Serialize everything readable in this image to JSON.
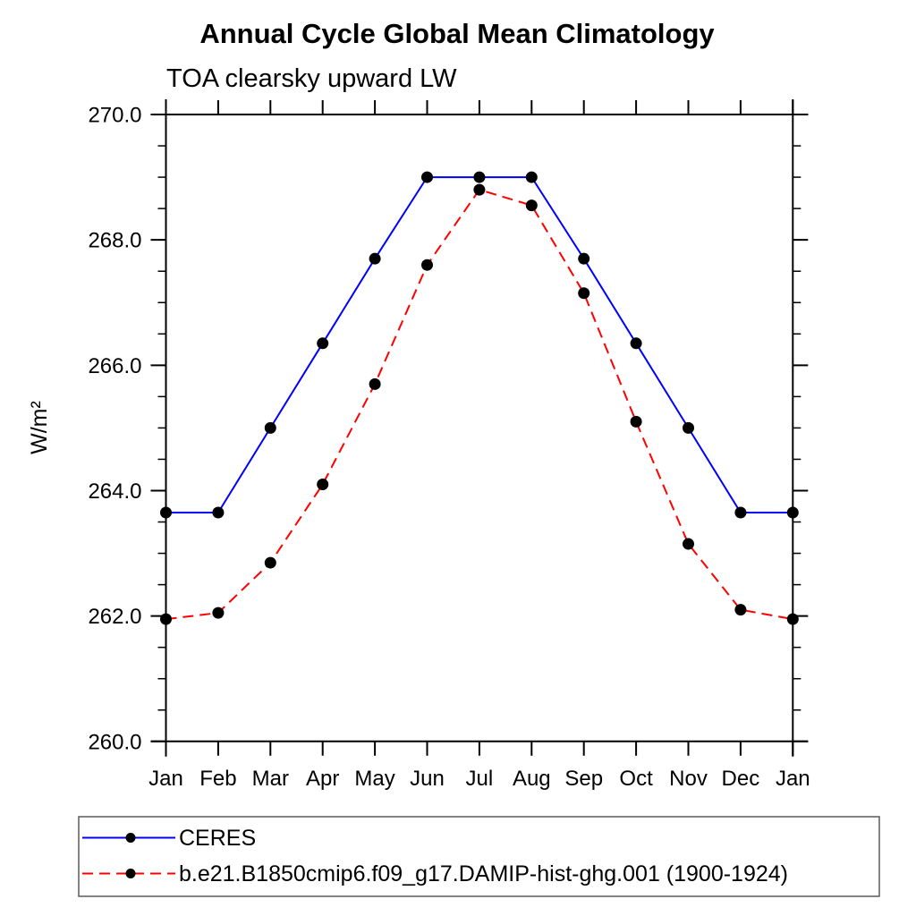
{
  "chart_data": {
    "type": "line",
    "title": "Annual Cycle Global Mean Climatology",
    "subtitle": "TOA clearsky upward LW",
    "ylabel": "W/m²",
    "categories": [
      "Jan",
      "Feb",
      "Mar",
      "Apr",
      "May",
      "Jun",
      "Jul",
      "Aug",
      "Sep",
      "Oct",
      "Nov",
      "Dec",
      "Jan"
    ],
    "ylim": [
      260.0,
      270.0
    ],
    "y_major_ticks": [
      260.0,
      262.0,
      264.0,
      266.0,
      268.0,
      270.0
    ],
    "y_minor_step": 0.5,
    "y_tick_decimals": 1,
    "grid": false,
    "legend_position": "bottom-left",
    "axis_color": "#000000",
    "marker_color": "#000000",
    "series": [
      {
        "name": "CERES",
        "color": "#0000ff",
        "line_style": "solid",
        "marker": "filled-circle",
        "values": [
          263.65,
          263.65,
          265.0,
          266.35,
          267.7,
          269.0,
          269.0,
          269.0,
          267.7,
          266.35,
          265.0,
          263.65,
          263.65
        ]
      },
      {
        "name": "b.e21.B1850cmip6.f09_g17.DAMIP-hist-ghg.001 (1900-1924)",
        "color": "#ff0000",
        "line_style": "dashed",
        "marker": "filled-circle",
        "values": [
          261.95,
          262.05,
          262.85,
          264.1,
          265.7,
          267.6,
          268.8,
          268.55,
          267.15,
          265.1,
          263.15,
          262.1,
          261.95
        ]
      }
    ]
  }
}
